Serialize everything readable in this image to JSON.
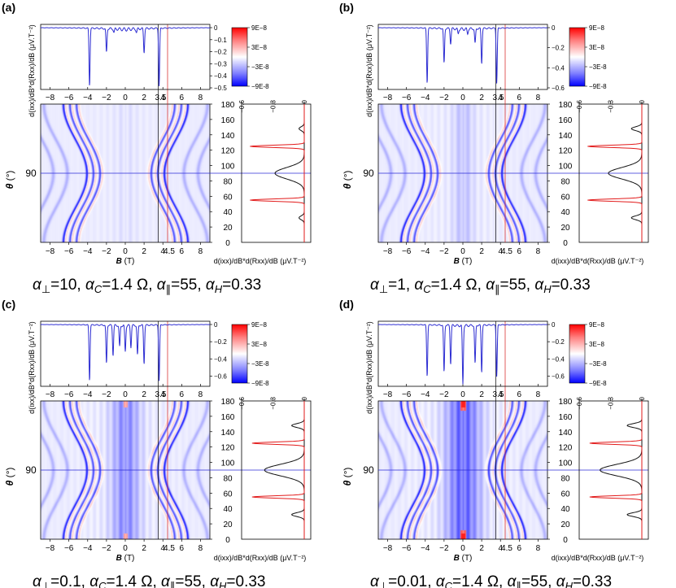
{
  "figure": {
    "colorbar_ticks": [
      "9E-8",
      "3E-8",
      "-3E-8",
      "-9E-8"
    ],
    "colors": {
      "positive": "#e8202a",
      "negative": "#1f2fd8",
      "curve_top": "#2d2dd2",
      "curve_right_red": "#e21a1a",
      "curve_right_black": "#111111",
      "axis": "#000000"
    }
  },
  "chart_data": [
    {
      "panel_label": "(a)",
      "type": "heatmap",
      "caption": "α⊥=10, αC=1.4 Ω, α∥=55, αH=0.33",
      "caption_parts": {
        "perp": "=10, ",
        "c": "=1.4 Ω, ",
        "par": "=55, ",
        "h": "=0.33"
      },
      "xlabel": "B (T)",
      "xlabel_bold": "B",
      "xlabel_unit": "(T)",
      "ylabel": "θ (°)",
      "ylabel_main": "θ",
      "ylabel_unit": "(°)",
      "top_ylabel": "d(ixx)/dB*d(Rxx)/dB (μV.T⁻²)",
      "right_xlabel": "d(ixx)/dB*d(Rxx)/dB (μV.T⁻²)",
      "x_ticks": [
        "-8",
        "-6",
        "-4",
        "-2",
        "0",
        "2",
        "4",
        "6",
        "8"
      ],
      "x_ticks_extra_top": "3.5",
      "x_ticks_extra_bottom": "4.5",
      "xlim": [
        -9,
        9
      ],
      "theta_ticks": [
        "180",
        "160",
        "140",
        "120",
        "100",
        "80",
        "60",
        "40",
        "20",
        "0"
      ],
      "theta_marker": "90",
      "ylim": [
        0,
        180
      ],
      "top_yticks": [
        "0",
        "-0.1",
        "-0.2",
        "-0.3",
        "-0.4",
        "-0.5"
      ],
      "top_ylim": [
        -0.5,
        0
      ],
      "right_xticks": [
        "-0.6",
        "-0.3",
        "0"
      ],
      "right_xlim": [
        -0.6,
        0
      ],
      "marker_lines_B": [
        3.5,
        4.5
      ],
      "marker_line_theta": 90,
      "center_band_strength": 0,
      "top_dips": [
        {
          "B": -3.8,
          "depth": -0.48
        },
        {
          "B": -2.0,
          "depth": -0.2
        },
        {
          "B": 2.0,
          "depth": -0.2
        },
        {
          "B": 3.6,
          "depth": -0.48
        },
        {
          "B": -1.2,
          "depth": -0.03
        },
        {
          "B": 1.2,
          "depth": -0.03
        }
      ],
      "right_red_peaks": [
        {
          "theta": 125,
          "value": -0.52
        },
        {
          "theta": 55,
          "value": -0.52
        }
      ],
      "right_black_peaks": [
        {
          "theta": 90,
          "value": -0.28
        },
        {
          "theta": 148,
          "value": -0.05
        },
        {
          "theta": 32,
          "value": -0.05
        }
      ]
    },
    {
      "panel_label": "(b)",
      "type": "heatmap",
      "caption": "α⊥=1, αC=1.4 Ω, α∥=55, αH=0.33",
      "caption_parts": {
        "perp": "=1, ",
        "c": "=1.4 Ω, ",
        "par": "=55, ",
        "h": "=0.33"
      },
      "xlabel": "B (T)",
      "xlabel_bold": "B",
      "xlabel_unit": "(T)",
      "ylabel": "θ (°)",
      "ylabel_main": "θ",
      "ylabel_unit": "(°)",
      "top_ylabel": "d(ixx)/dB*d(Rxx)/dB (μV.T⁻²)",
      "right_xlabel": "d(ixx)/dB*d(Rxx)/dB (μV.T⁻²)",
      "x_ticks": [
        "-8",
        "-6",
        "-4",
        "-2",
        "0",
        "2",
        "4",
        "6",
        "8"
      ],
      "x_ticks_extra_top": "3.5",
      "x_ticks_extra_bottom": "4.5",
      "xlim": [
        -9,
        9
      ],
      "theta_ticks": [
        "180",
        "160",
        "140",
        "120",
        "100",
        "80",
        "60",
        "40",
        "20",
        "0"
      ],
      "theta_marker": "90",
      "ylim": [
        0,
        180
      ],
      "top_yticks": [
        "0",
        "-0.2",
        "-0.4",
        "-0.6"
      ],
      "top_ylim": [
        -0.6,
        0
      ],
      "right_xticks": [
        "-0.6",
        "-0.3",
        "0"
      ],
      "right_xlim": [
        -0.6,
        0
      ],
      "marker_lines_B": [
        3.5,
        4.5
      ],
      "marker_line_theta": 90,
      "center_band_strength": 0.25,
      "top_dips": [
        {
          "B": -3.8,
          "depth": -0.55
        },
        {
          "B": -2.0,
          "depth": -0.35
        },
        {
          "B": -1.3,
          "depth": -0.15
        },
        {
          "B": 1.3,
          "depth": -0.15
        },
        {
          "B": 2.0,
          "depth": -0.35
        },
        {
          "B": 3.6,
          "depth": -0.55
        },
        {
          "B": -0.5,
          "depth": -0.05
        },
        {
          "B": 0.5,
          "depth": -0.05
        }
      ],
      "right_red_peaks": [
        {
          "theta": 125,
          "value": -0.52
        },
        {
          "theta": 55,
          "value": -0.52
        }
      ],
      "right_black_peaks": [
        {
          "theta": 90,
          "value": -0.32
        },
        {
          "theta": 148,
          "value": -0.1
        },
        {
          "theta": 32,
          "value": -0.1
        }
      ]
    },
    {
      "panel_label": "(c)",
      "type": "heatmap",
      "caption": "α⊥=0.1, αC=1.4 Ω, α∥=55, αH=0.33",
      "caption_parts": {
        "perp": "=0.1, ",
        "c": "=1.4 Ω, ",
        "par": "=55, ",
        "h": "=0.33"
      },
      "xlabel": "B (T)",
      "xlabel_bold": "B",
      "xlabel_unit": "(T)",
      "ylabel": "θ (°)",
      "ylabel_main": "θ",
      "ylabel_unit": "(°)",
      "top_ylabel": "d(ixx)/dB*d(Rxx)/dB (μV.T⁻²)",
      "right_xlabel": "d(ixx)/dB*d(Rxx)/dB (μV.T⁻²)",
      "x_ticks": [
        "-8",
        "-6",
        "-4",
        "-2",
        "0",
        "2",
        "4",
        "6",
        "8"
      ],
      "x_ticks_extra_top": "3.5",
      "x_ticks_extra_bottom": "4.5",
      "xlim": [
        -9,
        9
      ],
      "theta_ticks": [
        "180",
        "160",
        "140",
        "120",
        "100",
        "80",
        "60",
        "40",
        "20",
        "0"
      ],
      "theta_marker": "90",
      "ylim": [
        0,
        180
      ],
      "top_yticks": [
        "0",
        "-0.2",
        "-0.4",
        "-0.6"
      ],
      "top_ylim": [
        -0.7,
        0
      ],
      "right_xticks": [
        "-0.6",
        "-0.3",
        "0"
      ],
      "right_xlim": [
        -0.6,
        0
      ],
      "marker_lines_B": [
        3.5,
        4.5
      ],
      "marker_line_theta": 90,
      "center_band_strength": 0.7,
      "top_dips": [
        {
          "B": -3.8,
          "depth": -0.65
        },
        {
          "B": -2.0,
          "depth": -0.45
        },
        {
          "B": -1.3,
          "depth": -0.35
        },
        {
          "B": -0.6,
          "depth": -0.25
        },
        {
          "B": 0,
          "depth": -0.3
        },
        {
          "B": 0.6,
          "depth": -0.25
        },
        {
          "B": 1.3,
          "depth": -0.35
        },
        {
          "B": 2.0,
          "depth": -0.45
        },
        {
          "B": 3.6,
          "depth": -0.65
        }
      ],
      "right_red_peaks": [
        {
          "theta": 125,
          "value": -0.5
        },
        {
          "theta": 55,
          "value": -0.5
        }
      ],
      "right_black_peaks": [
        {
          "theta": 90,
          "value": -0.38
        },
        {
          "theta": 148,
          "value": -0.12
        },
        {
          "theta": 32,
          "value": -0.12
        }
      ]
    },
    {
      "panel_label": "(d)",
      "type": "heatmap",
      "caption": "α⊥=0.01, αC=1.4 Ω, α∥=55, αH=0.33",
      "caption_parts": {
        "perp": "=0.01, ",
        "c": "=1.4 Ω, ",
        "par": "=55, ",
        "h": "=0.33"
      },
      "xlabel": "B (T)",
      "xlabel_bold": "B",
      "xlabel_unit": "(T)",
      "ylabel": "θ (°)",
      "ylabel_main": "θ",
      "ylabel_unit": "(°)",
      "top_ylabel": "d(ixx)/dB*d(Rxx)/dB (μV.T⁻²)",
      "right_xlabel": "d(ixx)/dB*d(Rxx)/dB (μV.T⁻²)",
      "x_ticks": [
        "-8",
        "-6",
        "-4",
        "-2",
        "0",
        "2",
        "4",
        "6",
        "8"
      ],
      "x_ticks_extra_top": "3.5",
      "x_ticks_extra_bottom": "4.5",
      "xlim": [
        -9,
        9
      ],
      "theta_ticks": [
        "180",
        "160",
        "140",
        "120",
        "100",
        "80",
        "60",
        "40",
        "20",
        "0"
      ],
      "theta_marker": "90",
      "ylim": [
        0,
        180
      ],
      "top_yticks": [
        "0",
        "-0.2",
        "-0.4",
        "-0.6"
      ],
      "top_ylim": [
        -0.7,
        0
      ],
      "right_xticks": [
        "-0.6",
        "-0.3",
        "0"
      ],
      "right_xlim": [
        -0.6,
        0
      ],
      "marker_lines_B": [
        3.5,
        4.5
      ],
      "marker_line_theta": 90,
      "center_band_strength": 1,
      "top_dips": [
        {
          "B": -3.8,
          "depth": -0.6
        },
        {
          "B": -2.0,
          "depth": -0.55
        },
        {
          "B": -1.3,
          "depth": -0.45
        },
        {
          "B": 0,
          "depth": -0.68
        },
        {
          "B": 1.3,
          "depth": -0.45
        },
        {
          "B": 2.0,
          "depth": -0.55
        },
        {
          "B": 3.6,
          "depth": -0.6
        }
      ],
      "right_red_peaks": [
        {
          "theta": 125,
          "value": -0.5
        },
        {
          "theta": 55,
          "value": -0.5
        }
      ],
      "right_black_peaks": [
        {
          "theta": 90,
          "value": -0.4
        },
        {
          "theta": 148,
          "value": -0.14
        },
        {
          "theta": 32,
          "value": -0.14
        }
      ]
    }
  ]
}
